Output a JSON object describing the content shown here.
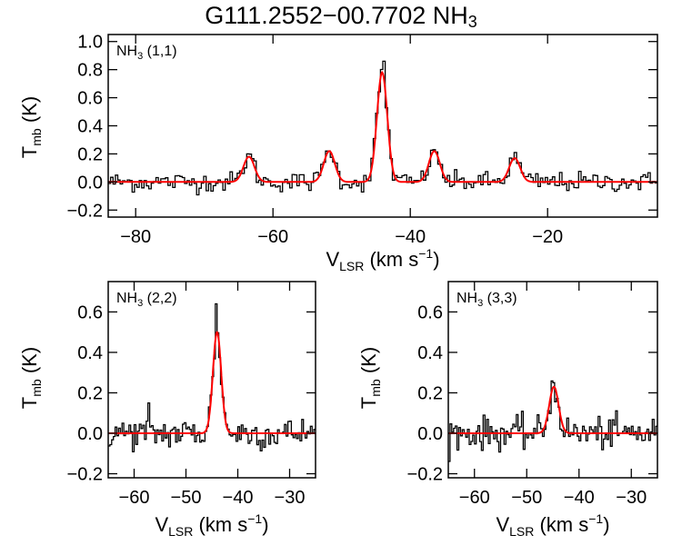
{
  "title": {
    "main": "G111.2552−00.7702 NH",
    "sub": "3"
  },
  "chart_data": [
    {
      "type": "line",
      "label": {
        "main": "NH",
        "sub": "3",
        "tail": " (1,1)"
      },
      "xlim": [
        -84,
        -4
      ],
      "ylim": [
        -0.25,
        1.05
      ],
      "xticks": [
        -80,
        -60,
        -40,
        -20
      ],
      "yticks": [
        -0.2,
        0.0,
        0.2,
        0.4,
        0.6,
        0.8,
        1.0
      ],
      "ytick_labels": [
        "−0.2",
        "0.0",
        "0.2",
        "0.4",
        "0.6",
        "0.8",
        "1.0"
      ],
      "xtick_labels": [
        "−80",
        "−60",
        "−40",
        "−20"
      ],
      "xlabel": {
        "main": "V",
        "sub": "LSR",
        "tail": " (km s",
        "sup": "−1",
        "end": ")"
      },
      "ylabel": {
        "main": "T",
        "sub": "mb",
        "tail": " (K)"
      },
      "fit_components": [
        {
          "center": -63.5,
          "amplitude": 0.18,
          "sigma": 0.8
        },
        {
          "center": -51.8,
          "amplitude": 0.22,
          "sigma": 0.8
        },
        {
          "center": -44.1,
          "amplitude": 0.78,
          "sigma": 0.75
        },
        {
          "center": -36.5,
          "amplitude": 0.22,
          "sigma": 0.8
        },
        {
          "center": -24.8,
          "amplitude": 0.17,
          "sigma": 0.8
        }
      ],
      "spectrum_peaks": [
        {
          "x": -44.0,
          "y": 0.86
        },
        {
          "x": -51.8,
          "y": 0.22
        },
        {
          "x": -36.5,
          "y": 0.23
        },
        {
          "x": -63.5,
          "y": 0.2
        },
        {
          "x": -24.8,
          "y": 0.21
        }
      ],
      "noise_rms": 0.035,
      "series": [
        {
          "name": "spectrum",
          "color": "#000000"
        },
        {
          "name": "fit",
          "color": "#ff0000"
        }
      ]
    },
    {
      "type": "line",
      "label": {
        "main": "NH",
        "sub": "3",
        "tail": " (2,2)"
      },
      "xlim": [
        -65,
        -25
      ],
      "ylim": [
        -0.22,
        0.75
      ],
      "xticks": [
        -60,
        -50,
        -40,
        -30
      ],
      "xtick_labels": [
        "−60",
        "−50",
        "−40",
        "−30"
      ],
      "yticks": [
        -0.2,
        0.0,
        0.2,
        0.4,
        0.6
      ],
      "ytick_labels": [
        "−0.2",
        "0.0",
        "0.2",
        "0.4",
        "0.6"
      ],
      "xlabel": {
        "main": "V",
        "sub": "LSR",
        "tail": " (km s",
        "sup": "−1",
        "end": ")"
      },
      "ylabel": {
        "main": "T",
        "sub": "mb",
        "tail": " (K)"
      },
      "fit_components": [
        {
          "center": -44.0,
          "amplitude": 0.5,
          "sigma": 0.8
        }
      ],
      "spectrum_peaks": [
        {
          "x": -44.2,
          "y": 0.64
        },
        {
          "x": -57.3,
          "y": 0.15
        }
      ],
      "noise_rms": 0.04,
      "series": [
        {
          "name": "spectrum",
          "color": "#000000"
        },
        {
          "name": "fit",
          "color": "#ff0000"
        }
      ]
    },
    {
      "type": "line",
      "label": {
        "main": "NH",
        "sub": "3",
        "tail": " (3,3)"
      },
      "xlim": [
        -65,
        -25
      ],
      "ylim": [
        -0.22,
        0.75
      ],
      "xticks": [
        -60,
        -50,
        -40,
        -30
      ],
      "xtick_labels": [
        "−60",
        "−50",
        "−40",
        "−30"
      ],
      "yticks": [
        -0.2,
        0.0,
        0.2,
        0.4,
        0.6
      ],
      "ytick_labels": [
        "−0.2",
        "0.0",
        "0.2",
        "0.4",
        "0.6"
      ],
      "xlabel": {
        "main": "V",
        "sub": "LSR",
        "tail": " (km s",
        "sup": "−1",
        "end": ")"
      },
      "ylabel": {
        "main": "T",
        "sub": "mb",
        "tail": " (K)"
      },
      "fit_components": [
        {
          "center": -44.8,
          "amplitude": 0.23,
          "sigma": 0.9
        }
      ],
      "spectrum_peaks": [
        {
          "x": -44.8,
          "y": 0.25
        }
      ],
      "noise_rms": 0.04,
      "series": [
        {
          "name": "spectrum",
          "color": "#000000"
        },
        {
          "name": "fit",
          "color": "#ff0000"
        }
      ]
    }
  ]
}
